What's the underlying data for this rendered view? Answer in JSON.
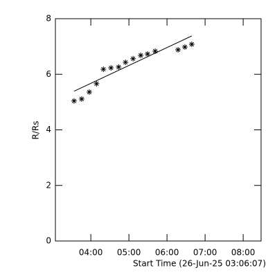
{
  "chart_data": {
    "type": "scatter",
    "xlabel": "Start Time (26-Jun-25 03:06:07)",
    "ylabel": "R/Rs",
    "xlim": [
      3.07,
      8.47
    ],
    "ylim": [
      0,
      8
    ],
    "xticks": [
      {
        "value": 4,
        "label": "04:00"
      },
      {
        "value": 5,
        "label": "05:00"
      },
      {
        "value": 6,
        "label": "06:00"
      },
      {
        "value": 7,
        "label": "07:00"
      },
      {
        "value": 8,
        "label": "08:00"
      }
    ],
    "yticks": [
      0,
      2,
      4,
      6,
      8
    ],
    "color": "#000000",
    "x": [
      3.56,
      3.76,
      3.96,
      4.15,
      4.33,
      4.53,
      4.73,
      4.91,
      5.11,
      5.31,
      5.49,
      5.69,
      6.29,
      6.47,
      6.65
    ],
    "values": [
      5.04,
      5.11,
      5.36,
      5.66,
      6.18,
      6.23,
      6.26,
      6.43,
      6.56,
      6.68,
      6.73,
      6.83,
      6.88,
      6.98,
      7.08
    ],
    "fit": {
      "x": [
        3.56,
        6.65
      ],
      "values": [
        5.39,
        7.38
      ]
    }
  }
}
